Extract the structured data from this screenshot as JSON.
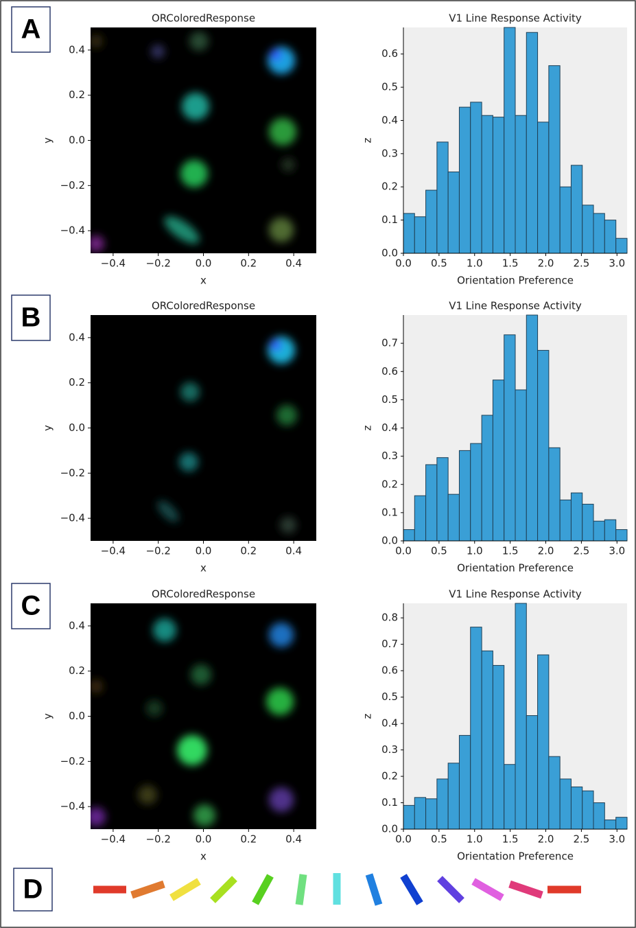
{
  "panel_labels": [
    "A",
    "B",
    "C",
    "D"
  ],
  "chart_data": [
    {
      "type": "image",
      "title": "ORColoredResponse",
      "xlabel": "x",
      "ylabel": "y",
      "xlim": [
        -0.5,
        0.5
      ],
      "ylim": [
        -0.5,
        0.5
      ],
      "xticks": [
        {
          "value": -0.4,
          "label": "−0.4"
        },
        {
          "value": -0.2,
          "label": "−0.2"
        },
        {
          "value": 0,
          "label": "0.0"
        },
        0.2,
        0.4
      ],
      "yticks": [
        {
          "value": -0.4,
          "label": "−0.4"
        },
        {
          "value": -0.2,
          "label": "−0.2"
        },
        {
          "value": 0,
          "label": "0.0"
        },
        0.2,
        0.4
      ]
    },
    {
      "type": "histogram",
      "title": "V1 Line Response Activity",
      "xlabel": "Orientation Preference",
      "ylabel": "z",
      "color": "#3a9fd6",
      "bins": [
        0,
        0.157,
        0.314,
        0.471,
        0.628,
        0.785,
        0.942,
        1.1,
        1.257,
        1.414,
        1.571,
        1.728,
        1.885,
        2.042,
        2.199,
        2.356,
        2.513,
        2.67,
        2.827,
        2.985,
        3.142
      ],
      "values": [
        0.12,
        0.11,
        0.19,
        0.335,
        0.245,
        0.44,
        0.455,
        0.415,
        0.41,
        0.68,
        0.415,
        0.665,
        0.395,
        0.565,
        0.2,
        0.265,
        0.145,
        0.12,
        0.1,
        0.045
      ],
      "xlim": [
        0,
        3.142
      ],
      "ylim": [
        0,
        0.68
      ],
      "xticks": [
        {
          "value": 0,
          "label": "0.0"
        },
        0.5,
        {
          "value": 1,
          "label": "1.0"
        },
        1.5,
        {
          "value": 2,
          "label": "2.0"
        },
        2.5,
        {
          "value": 3,
          "label": "3.0"
        }
      ],
      "yticks": [
        {
          "value": 0,
          "label": "0.0"
        },
        0.1,
        0.2,
        0.3,
        0.4,
        0.5,
        0.6
      ]
    },
    {
      "type": "image",
      "title": "ORColoredResponse",
      "xlabel": "x",
      "ylabel": "y",
      "xlim": [
        -0.5,
        0.5
      ],
      "ylim": [
        -0.5,
        0.5
      ],
      "xticks": [
        {
          "value": -0.4,
          "label": "−0.4"
        },
        {
          "value": -0.2,
          "label": "−0.2"
        },
        {
          "value": 0,
          "label": "0.0"
        },
        0.2,
        0.4
      ],
      "yticks": [
        {
          "value": -0.4,
          "label": "−0.4"
        },
        {
          "value": -0.2,
          "label": "−0.2"
        },
        {
          "value": 0,
          "label": "0.0"
        },
        0.2,
        0.4
      ]
    },
    {
      "type": "histogram",
      "title": "V1 Line Response Activity",
      "xlabel": "Orientation Preference",
      "ylabel": "z",
      "color": "#3a9fd6",
      "bins": [
        0,
        0.157,
        0.314,
        0.471,
        0.628,
        0.785,
        0.942,
        1.1,
        1.257,
        1.414,
        1.571,
        1.728,
        1.885,
        2.042,
        2.199,
        2.356,
        2.513,
        2.67,
        2.827,
        2.985,
        3.142
      ],
      "values": [
        0.04,
        0.16,
        0.27,
        0.295,
        0.165,
        0.32,
        0.345,
        0.445,
        0.57,
        0.73,
        0.535,
        0.8,
        0.675,
        0.33,
        0.145,
        0.17,
        0.13,
        0.07,
        0.075,
        0.04
      ],
      "xlim": [
        0,
        3.142
      ],
      "ylim": [
        0,
        0.8
      ],
      "xticks": [
        {
          "value": 0,
          "label": "0.0"
        },
        0.5,
        {
          "value": 1,
          "label": "1.0"
        },
        1.5,
        {
          "value": 2,
          "label": "2.0"
        },
        2.5,
        {
          "value": 3,
          "label": "3.0"
        }
      ],
      "yticks": [
        {
          "value": 0,
          "label": "0.0"
        },
        0.1,
        0.2,
        0.3,
        0.4,
        0.5,
        0.6,
        0.7
      ]
    },
    {
      "type": "image",
      "title": "ORColoredResponse",
      "xlabel": "x",
      "ylabel": "y",
      "xlim": [
        -0.5,
        0.5
      ],
      "ylim": [
        -0.5,
        0.5
      ],
      "xticks": [
        {
          "value": -0.4,
          "label": "−0.4"
        },
        {
          "value": -0.2,
          "label": "−0.2"
        },
        {
          "value": 0,
          "label": "0.0"
        },
        0.2,
        0.4
      ],
      "yticks": [
        {
          "value": -0.4,
          "label": "−0.4"
        },
        {
          "value": -0.2,
          "label": "−0.2"
        },
        {
          "value": 0,
          "label": "0.0"
        },
        0.2,
        0.4
      ]
    },
    {
      "type": "histogram",
      "title": "V1 Line Response Activity",
      "xlabel": "Orientation Preference",
      "ylabel": "z",
      "color": "#3a9fd6",
      "bins": [
        0,
        0.157,
        0.314,
        0.471,
        0.628,
        0.785,
        0.942,
        1.1,
        1.257,
        1.414,
        1.571,
        1.728,
        1.885,
        2.042,
        2.199,
        2.356,
        2.513,
        2.67,
        2.827,
        2.985,
        3.142
      ],
      "values": [
        0.09,
        0.12,
        0.115,
        0.19,
        0.25,
        0.355,
        0.765,
        0.675,
        0.62,
        0.245,
        0.855,
        0.43,
        0.66,
        0.275,
        0.19,
        0.16,
        0.145,
        0.1,
        0.035,
        0.045
      ],
      "xlim": [
        0,
        3.142
      ],
      "ylim": [
        0,
        0.855
      ],
      "xticks": [
        {
          "value": 0,
          "label": "0.0"
        },
        0.5,
        {
          "value": 1,
          "label": "1.0"
        },
        1.5,
        {
          "value": 2,
          "label": "2.0"
        },
        2.5,
        {
          "value": 3,
          "label": "3.0"
        }
      ],
      "yticks": [
        {
          "value": 0,
          "label": "0.0"
        },
        0.1,
        0.2,
        0.3,
        0.4,
        0.5,
        0.6,
        0.7,
        0.8
      ]
    }
  ]
}
